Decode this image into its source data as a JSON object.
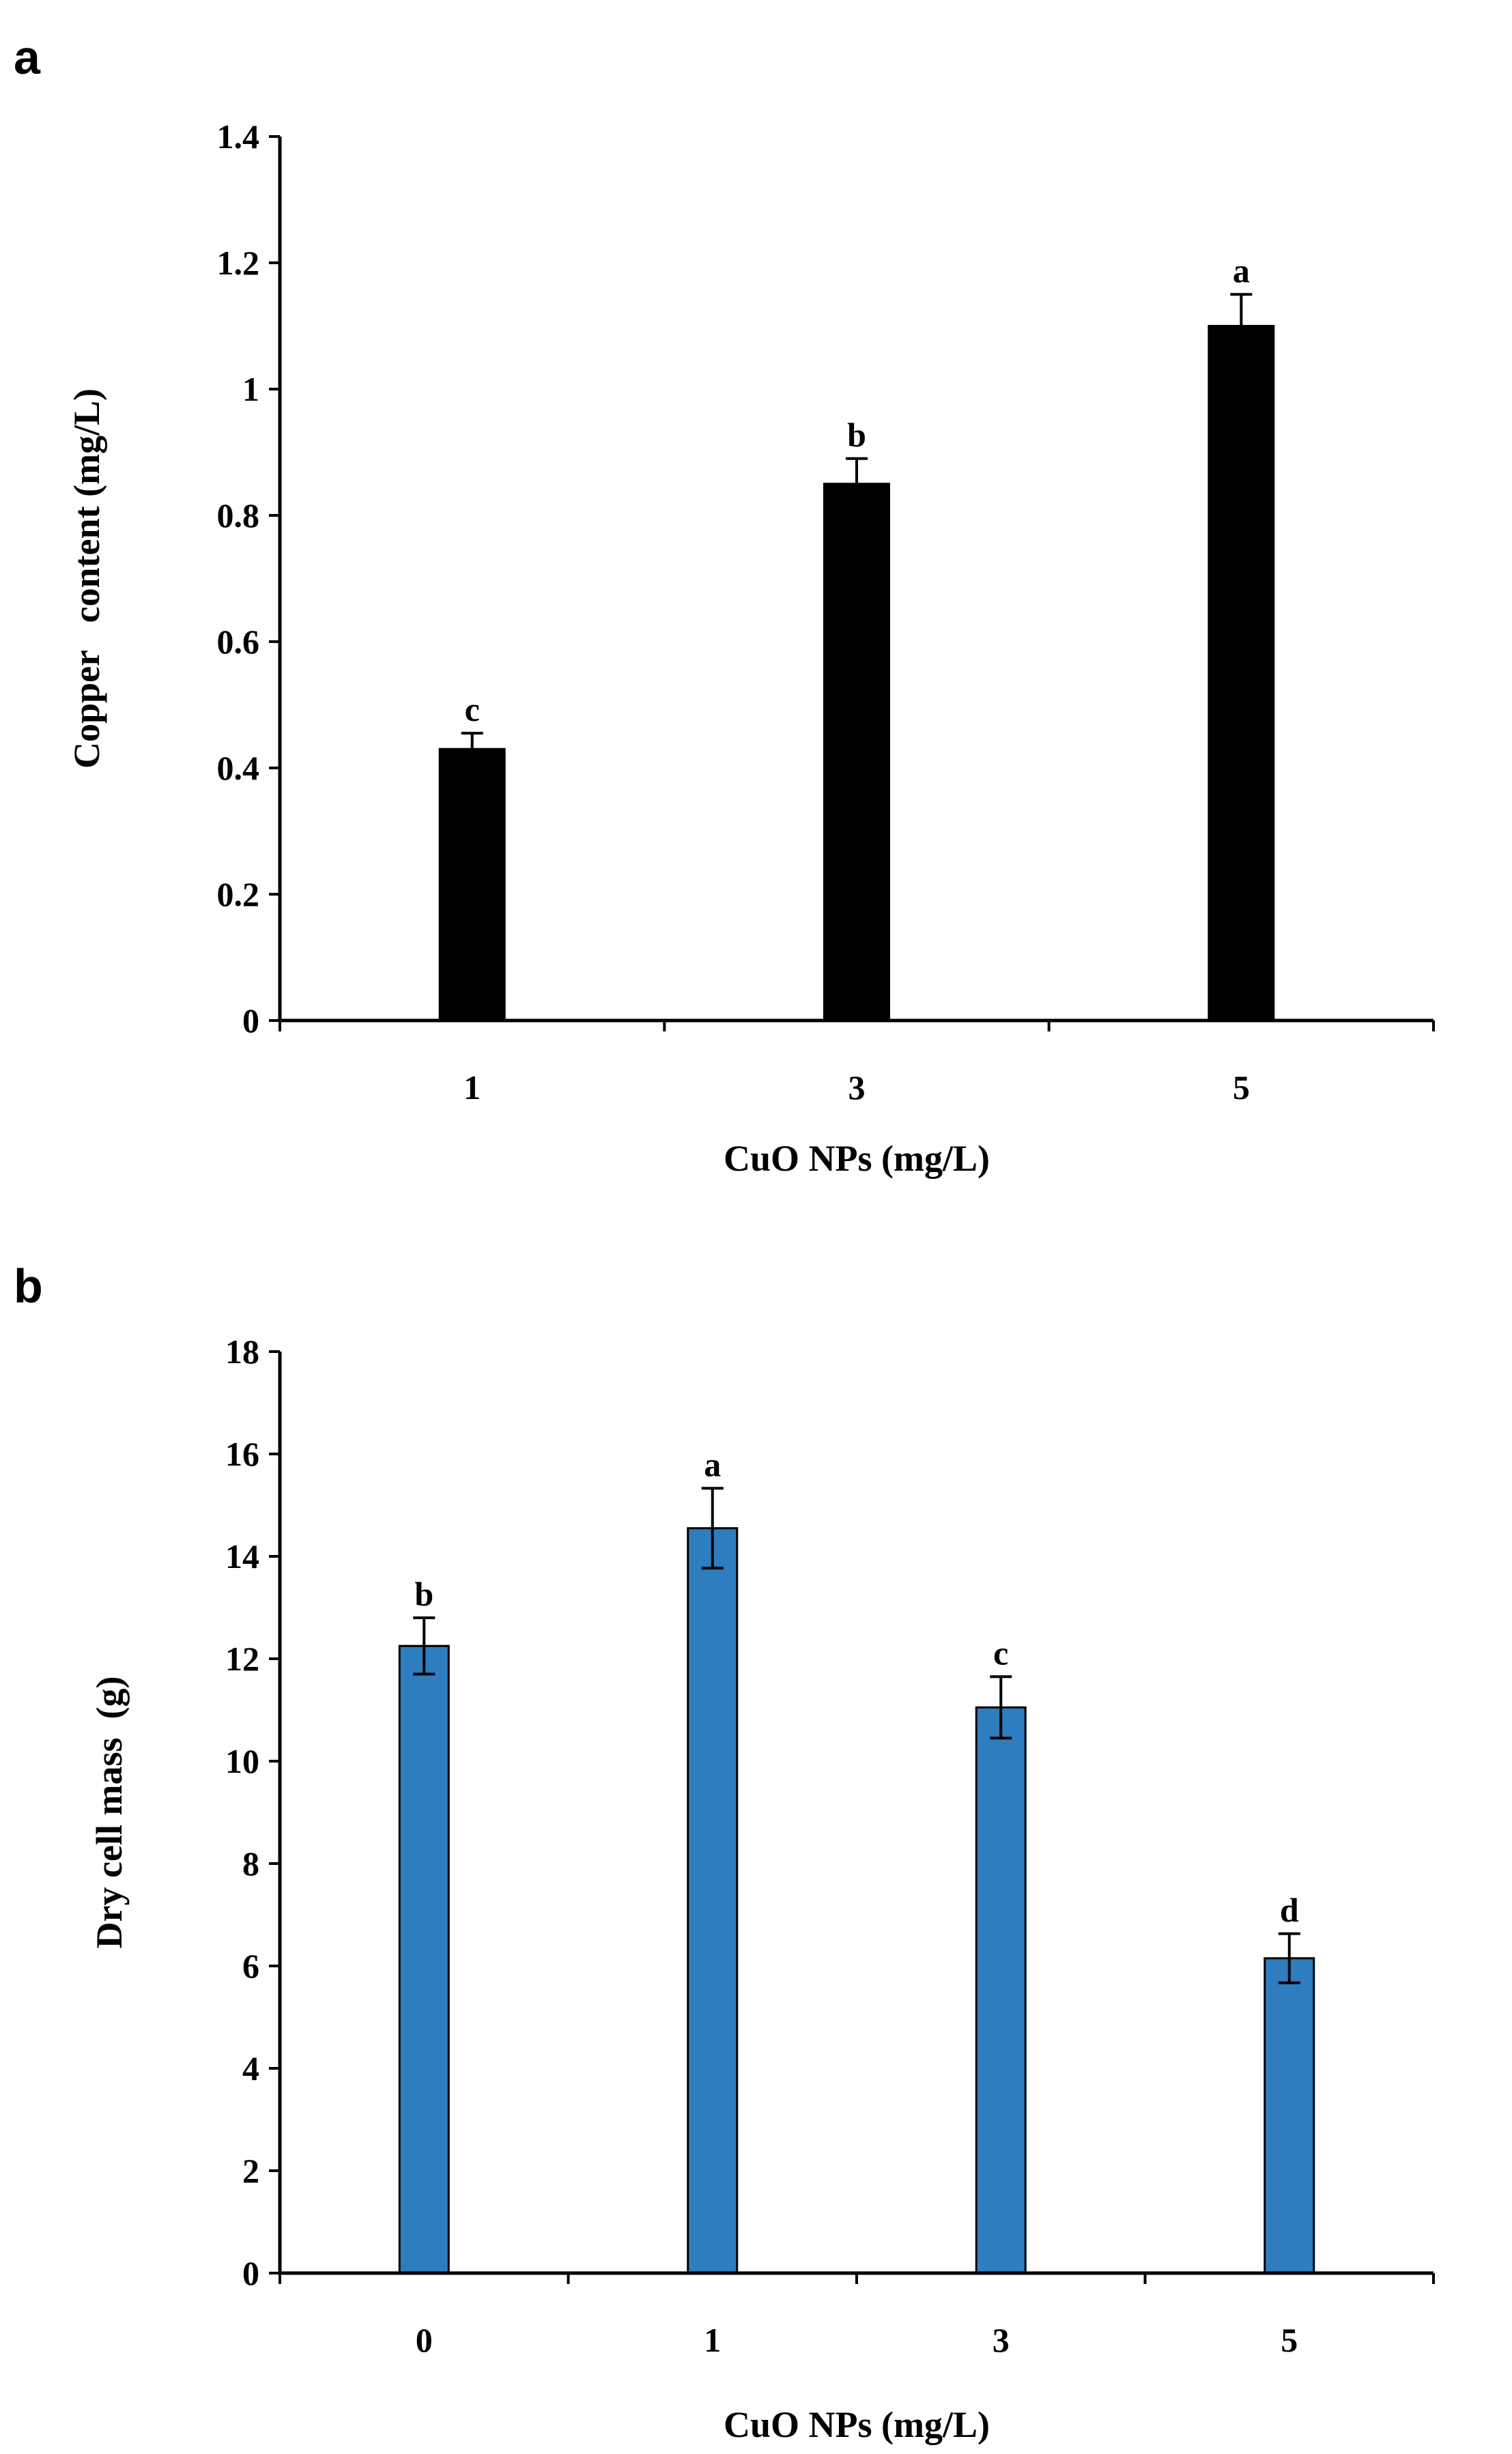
{
  "chart_data": [
    {
      "type": "bar",
      "panel": "a",
      "categories": [
        "1",
        "3",
        "5"
      ],
      "values": [
        0.43,
        0.85,
        1.1
      ],
      "errors": [
        0.025,
        0.04,
        0.05
      ],
      "sig_labels": [
        "c",
        "b",
        "a"
      ],
      "xlabel": "CuO NPs (mg/L)",
      "ylabel": "Copper   content (mg/L)",
      "ylim": [
        0,
        1.4
      ],
      "yticks": [
        "0",
        "0.2",
        "0.4",
        "0.6",
        "0.8",
        "1",
        "1.2",
        "1.4"
      ],
      "color": "#000000",
      "grid": false
    },
    {
      "type": "bar",
      "panel": "b",
      "categories": [
        "0",
        "1",
        "3",
        "5"
      ],
      "values": [
        12.25,
        14.55,
        11.05,
        6.15
      ],
      "errors": [
        0.55,
        0.78,
        0.6,
        0.48
      ],
      "sig_labels": [
        "b",
        "a",
        "c",
        "d"
      ],
      "xlabel": "CuO NPs (mg/L)",
      "ylabel": "Dry cell mass  (g)",
      "ylim": [
        0,
        18
      ],
      "yticks": [
        "0",
        "2",
        "4",
        "6",
        "8",
        "10",
        "12",
        "14",
        "16",
        "18"
      ],
      "color": "#2e7ebf",
      "grid": false
    }
  ]
}
